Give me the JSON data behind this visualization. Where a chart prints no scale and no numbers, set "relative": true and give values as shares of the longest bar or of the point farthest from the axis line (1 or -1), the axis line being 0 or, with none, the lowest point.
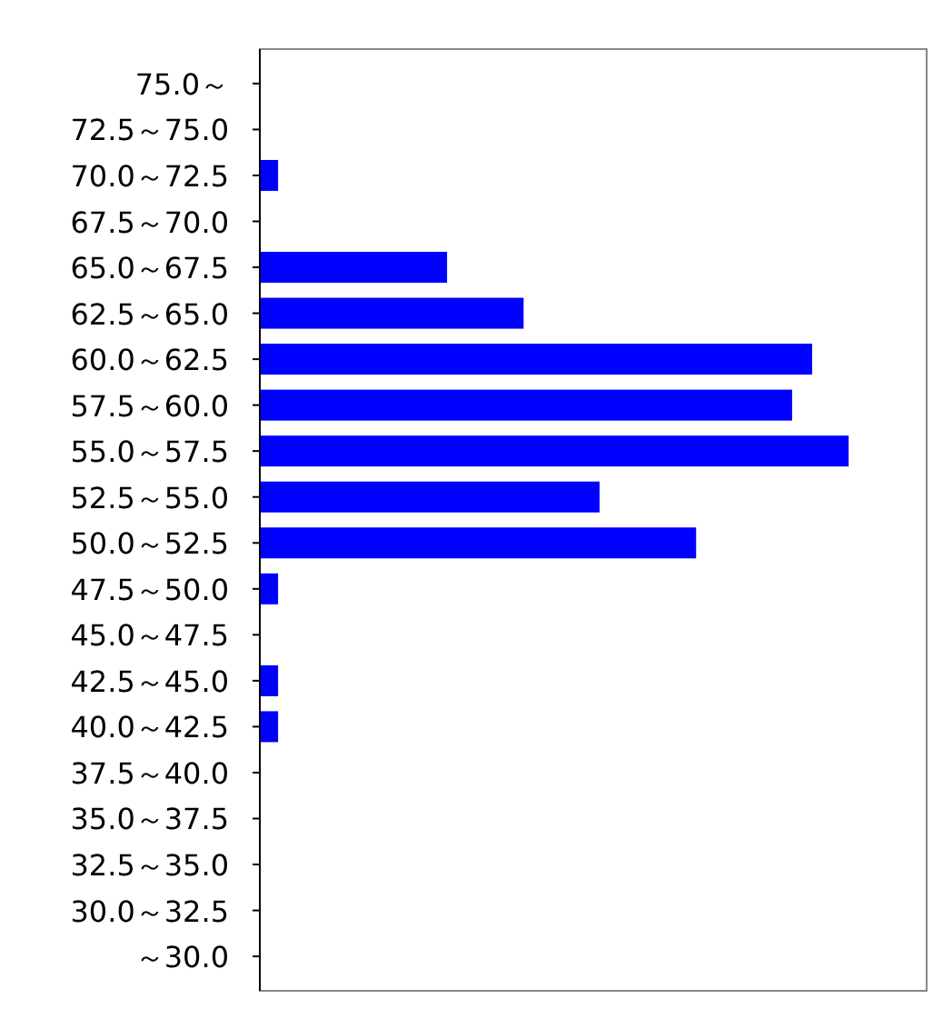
{
  "chart_data": {
    "type": "bar",
    "orientation": "horizontal",
    "relative": true,
    "color": "#0000ff",
    "categories": [
      "75.0～",
      "72.5～75.0",
      "70.0～72.5",
      "67.5～70.0",
      "65.0～67.5",
      "62.5～65.0",
      "60.0～62.5",
      "57.5～60.0",
      "55.0～57.5",
      "52.5～55.0",
      "50.0～52.5",
      "47.5～50.0",
      "45.0～47.5",
      "42.5～45.0",
      "40.0～42.5",
      "37.5～40.0",
      "35.0～37.5",
      "32.5～35.0",
      "30.0～32.5",
      "～30.0"
    ],
    "values": [
      0,
      0,
      0.031,
      0,
      0.318,
      0.448,
      0.938,
      0.904,
      1,
      0.577,
      0.741,
      0.031,
      0,
      0.031,
      0.031,
      0,
      0,
      0,
      0,
      0
    ]
  }
}
